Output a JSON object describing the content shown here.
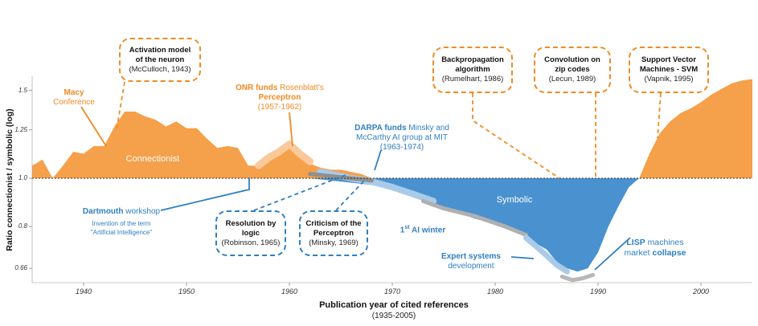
{
  "chart_data": {
    "type": "area",
    "xlabel": "Publication year of cited references",
    "xlabel_sub": "(1935-2005)",
    "ylabel": "Ratio connectionist / symbolic (log)",
    "scale": "log",
    "xlim": [
      1935,
      2005
    ],
    "ylim": [
      0.6,
      1.75
    ],
    "baseline": 1.0,
    "x_ticks": [
      "1940",
      "1950",
      "1960",
      "1970",
      "1980",
      "1990",
      "2000"
    ],
    "y_ticks": [
      "1.5",
      "1.25",
      "1.0",
      "0.8",
      "0.66"
    ],
    "y_tick_values": [
      1.5,
      1.25,
      1.0,
      0.8,
      0.66
    ],
    "series": [
      {
        "name": "Connectionist",
        "color": "#f5a04a",
        "x": [
          1935,
          1936,
          1937,
          1938,
          1939,
          1940,
          1941,
          1942,
          1943,
          1944,
          1945,
          1946,
          1947,
          1948,
          1949,
          1950,
          1951,
          1952,
          1953,
          1954,
          1955,
          1956,
          1957,
          1958,
          1959,
          1960,
          1961,
          1962,
          1963,
          1964,
          1965,
          1966,
          1967,
          1968,
          1994,
          1995,
          1996,
          1997,
          1998,
          1999,
          2000,
          2001,
          2002,
          2003,
          2004,
          2005
        ],
        "values": [
          1.06,
          1.09,
          1.0,
          1.06,
          1.13,
          1.12,
          1.16,
          1.16,
          1.27,
          1.36,
          1.36,
          1.33,
          1.31,
          1.27,
          1.3,
          1.26,
          1.26,
          1.2,
          1.15,
          1.16,
          1.15,
          1.06,
          1.06,
          1.09,
          1.11,
          1.15,
          1.1,
          1.07,
          1.05,
          1.04,
          1.04,
          1.03,
          1.02,
          1.0,
          1.0,
          1.12,
          1.23,
          1.3,
          1.35,
          1.38,
          1.42,
          1.47,
          1.51,
          1.55,
          1.57,
          1.58
        ]
      },
      {
        "name": "Symbolic",
        "color": "#4a92cf",
        "x": [
          1962,
          1964,
          1966,
          1968,
          1970,
          1972,
          1974,
          1976,
          1978,
          1980,
          1982,
          1984,
          1985,
          1986,
          1987,
          1988,
          1989,
          1990,
          1991,
          1992,
          1993,
          1994
        ],
        "values": [
          1.0,
          0.99,
          0.98,
          0.97,
          0.95,
          0.92,
          0.89,
          0.86,
          0.83,
          0.81,
          0.79,
          0.74,
          0.72,
          0.68,
          0.66,
          0.65,
          0.66,
          0.71,
          0.8,
          0.88,
          0.96,
          1.0
        ]
      }
    ],
    "area_labels": {
      "connectionist": "Connectionist",
      "symbolic": "Symbolic"
    },
    "annotations": {
      "macy": {
        "bold": "Macy",
        "normal": "Conference"
      },
      "activation": {
        "title": "Activation model of the neuron",
        "cite": "(McCulloch, 1943)"
      },
      "onr": {
        "bold_a": "ONR funds",
        "normal_a": "Rosenblatt's",
        "bold_b": "Perceptron",
        "years": "(1957-1962)"
      },
      "darpa": {
        "bold": "DARPA funds",
        "normal_a": "Minsky and",
        "normal_b": "McCarthy AI group at MIT",
        "years": "(1963-1974)"
      },
      "dartmouth": {
        "bold": "Dartmouth",
        "normal": "workshop",
        "sub_a": "Invention of the term",
        "sub_b": "\"Artificial Intelligence\""
      },
      "resolution": {
        "title": "Resolution by logic",
        "cite": "(Robinson, 1965)"
      },
      "criticism": {
        "title": "Criticism of the Perceptron",
        "cite": "(Minsky, 1969)"
      },
      "ai_winter": {
        "prefix": "1",
        "sup": "st",
        "text": "AI winter"
      },
      "expert": {
        "bold": "Expert systems",
        "normal": "development"
      },
      "lisp": {
        "bold_a": "LISP",
        "normal_a": "machines",
        "normal_b": "market",
        "bold_b": "collapse"
      },
      "backprop": {
        "title": "Backpropagation algorithm",
        "cite": "(Rumelhart, 1986)"
      },
      "convolution": {
        "title": "Convolution on zip codes",
        "cite": "(Lecun, 1989)"
      },
      "svm": {
        "title": "Support Vector Machines - SVM",
        "cite": "(Vapnik, 1995)"
      }
    }
  }
}
